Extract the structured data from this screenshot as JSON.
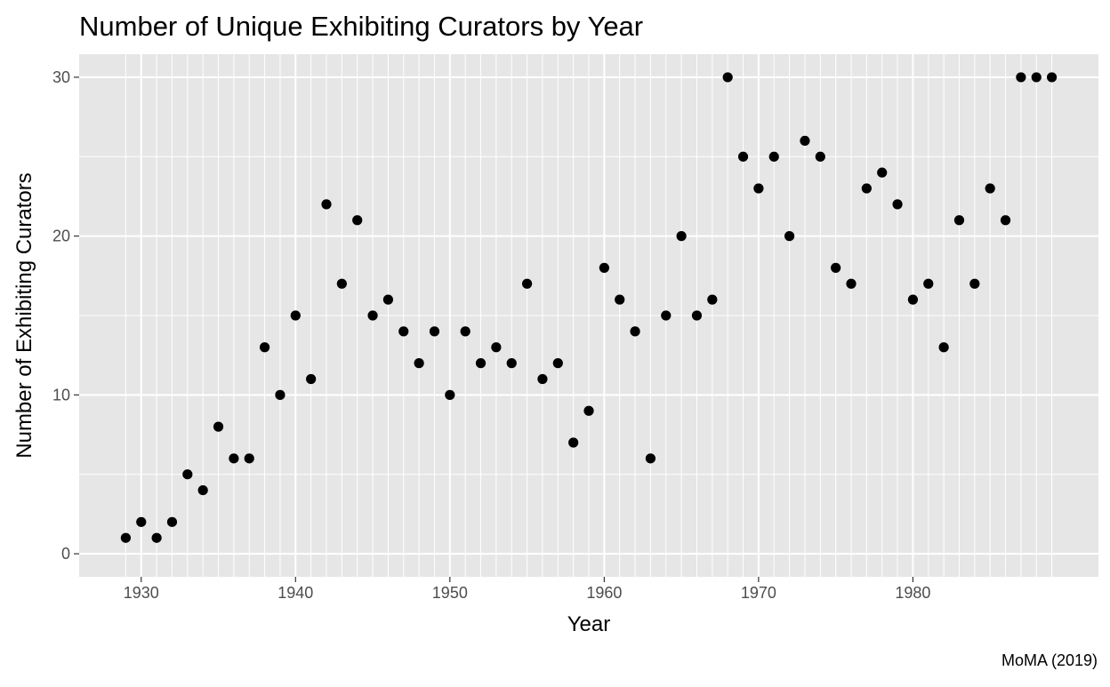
{
  "chart_data": {
    "type": "scatter",
    "title": "Number of Unique Exhibiting Curators by Year",
    "xlabel": "Year",
    "ylabel": "Number of Exhibiting Curators",
    "caption": "MoMA (2019)",
    "xlim": [
      1925.98,
      1992.02
    ],
    "ylim": [
      -1.45,
      31.45
    ],
    "x_ticks": [
      1930,
      1940,
      1950,
      1960,
      1970,
      1980
    ],
    "x_tick_labels": [
      "1930",
      "1940",
      "1950",
      "1960",
      "1970",
      "1980"
    ],
    "y_ticks": [
      0,
      10,
      20,
      30
    ],
    "y_tick_labels": [
      "0",
      "10",
      "20",
      "30"
    ],
    "grid": true,
    "panel_background": "#e6e6e6",
    "grid_color": "#ffffff",
    "point_color": "#000000",
    "x": [
      1929,
      1930,
      1931,
      1932,
      1933,
      1934,
      1935,
      1936,
      1937,
      1938,
      1939,
      1940,
      1941,
      1942,
      1943,
      1944,
      1945,
      1946,
      1947,
      1948,
      1949,
      1950,
      1951,
      1952,
      1953,
      1954,
      1955,
      1956,
      1957,
      1958,
      1959,
      1960,
      1961,
      1962,
      1963,
      1964,
      1965,
      1966,
      1967,
      1968,
      1969,
      1970,
      1971,
      1972,
      1973,
      1974,
      1975,
      1976,
      1977,
      1978,
      1979,
      1980,
      1981,
      1982,
      1983,
      1984,
      1985,
      1986,
      1987,
      1988,
      1989
    ],
    "y": [
      1,
      2,
      1,
      2,
      5,
      4,
      8,
      6,
      6,
      13,
      10,
      15,
      11,
      22,
      17,
      21,
      15,
      16,
      14,
      12,
      14,
      10,
      14,
      12,
      13,
      12,
      17,
      11,
      12,
      7,
      9,
      18,
      16,
      14,
      6,
      15,
      20,
      15,
      16,
      30,
      25,
      23,
      25,
      20,
      26,
      25,
      18,
      17,
      23,
      24,
      22,
      16,
      17,
      13,
      21,
      17,
      23,
      21,
      30,
      30,
      30
    ]
  }
}
